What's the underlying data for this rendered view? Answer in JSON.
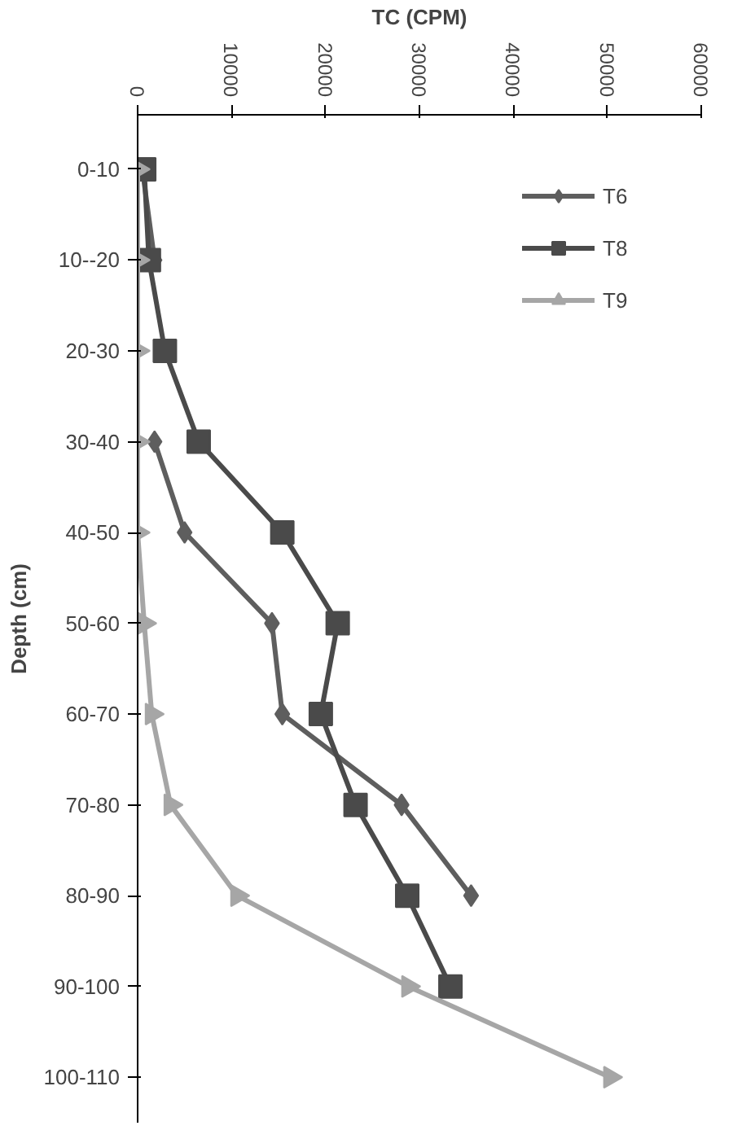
{
  "chart_data": {
    "type": "line",
    "orientation": "horizontal",
    "xlabel": "TC (CPM)",
    "ylabel": "Depth (cm)",
    "categories": [
      "0-10",
      "10--20",
      "20-30",
      "30-40",
      "40-50",
      "50-60",
      "60-70",
      "70-80",
      "80-90",
      "90-100",
      "100-110"
    ],
    "xlim": [
      0,
      60000
    ],
    "xticks": [
      0,
      10000,
      20000,
      30000,
      40000,
      50000,
      60000
    ],
    "grid": false,
    "legend": "top right",
    "series": [
      {
        "name": "T6",
        "color": "#5e5e5e",
        "marker": "diamond",
        "values": [
          500,
          1800,
          null,
          1800,
          5000,
          14300,
          15400,
          28100,
          35500,
          null,
          null
        ]
      },
      {
        "name": "T8",
        "color": "#4a4a4a",
        "marker": "square",
        "values": [
          700,
          1200,
          2900,
          6500,
          15400,
          21300,
          19500,
          23200,
          28700,
          33300,
          null
        ]
      },
      {
        "name": "T9",
        "color": "#a6a6a6",
        "marker": "triangle",
        "values": [
          0,
          0,
          0,
          0,
          0,
          700,
          1500,
          3500,
          10600,
          28800,
          50300
        ]
      }
    ]
  }
}
